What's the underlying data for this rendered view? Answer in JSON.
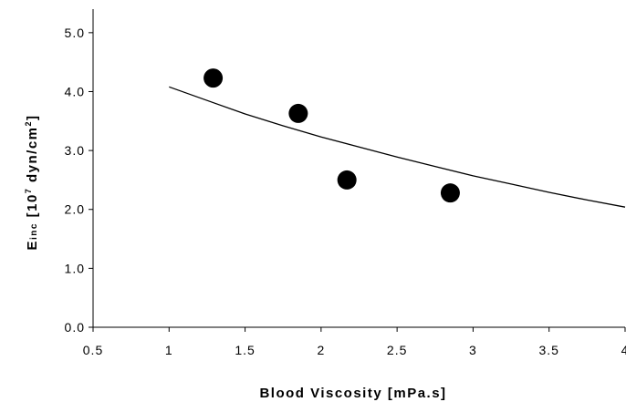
{
  "chart_data": {
    "type": "scatter",
    "xlabel": "Blood Viscosity [mPa.s]",
    "ylabel": {
      "main": "E",
      "subscript": "inc",
      "bracket_open": " [10",
      "exponent": "7",
      "unit": " dyn/cm",
      "unit_exponent": "2",
      "bracket_close": "]"
    },
    "xlim": [
      0.5,
      4
    ],
    "ylim": [
      0.0,
      5.4
    ],
    "x_ticks": [
      {
        "value": 0.5,
        "label": "0.5"
      },
      {
        "value": 1,
        "label": "1"
      },
      {
        "value": 1.5,
        "label": "1.5"
      },
      {
        "value": 2,
        "label": "2"
      },
      {
        "value": 2.5,
        "label": "2.5"
      },
      {
        "value": 3,
        "label": "3"
      },
      {
        "value": 3.5,
        "label": "3.5"
      },
      {
        "value": 4,
        "label": "4"
      }
    ],
    "y_ticks": [
      {
        "value": 0.0,
        "label": "0.0"
      },
      {
        "value": 1.0,
        "label": "1.0"
      },
      {
        "value": 2.0,
        "label": "2.0"
      },
      {
        "value": 3.0,
        "label": "3.0"
      },
      {
        "value": 4.0,
        "label": "4.0"
      },
      {
        "value": 5.0,
        "label": "5.0"
      }
    ],
    "grid": false,
    "series": [
      {
        "type": "scatter",
        "marker_color": "#000000",
        "points": [
          {
            "x": 1.29,
            "y": 4.23
          },
          {
            "x": 1.85,
            "y": 3.63
          },
          {
            "x": 2.17,
            "y": 2.5
          },
          {
            "x": 2.85,
            "y": 2.28
          }
        ]
      },
      {
        "type": "line",
        "line_color": "#000000",
        "points": [
          {
            "x": 1.0,
            "y": 4.08
          },
          {
            "x": 1.25,
            "y": 3.85
          },
          {
            "x": 1.5,
            "y": 3.62
          },
          {
            "x": 1.75,
            "y": 3.42
          },
          {
            "x": 2.0,
            "y": 3.23
          },
          {
            "x": 2.25,
            "y": 3.06
          },
          {
            "x": 2.5,
            "y": 2.89
          },
          {
            "x": 2.75,
            "y": 2.73
          },
          {
            "x": 3.0,
            "y": 2.57
          },
          {
            "x": 3.25,
            "y": 2.43
          },
          {
            "x": 3.5,
            "y": 2.29
          },
          {
            "x": 3.75,
            "y": 2.16
          },
          {
            "x": 4.0,
            "y": 2.04
          }
        ]
      }
    ]
  }
}
